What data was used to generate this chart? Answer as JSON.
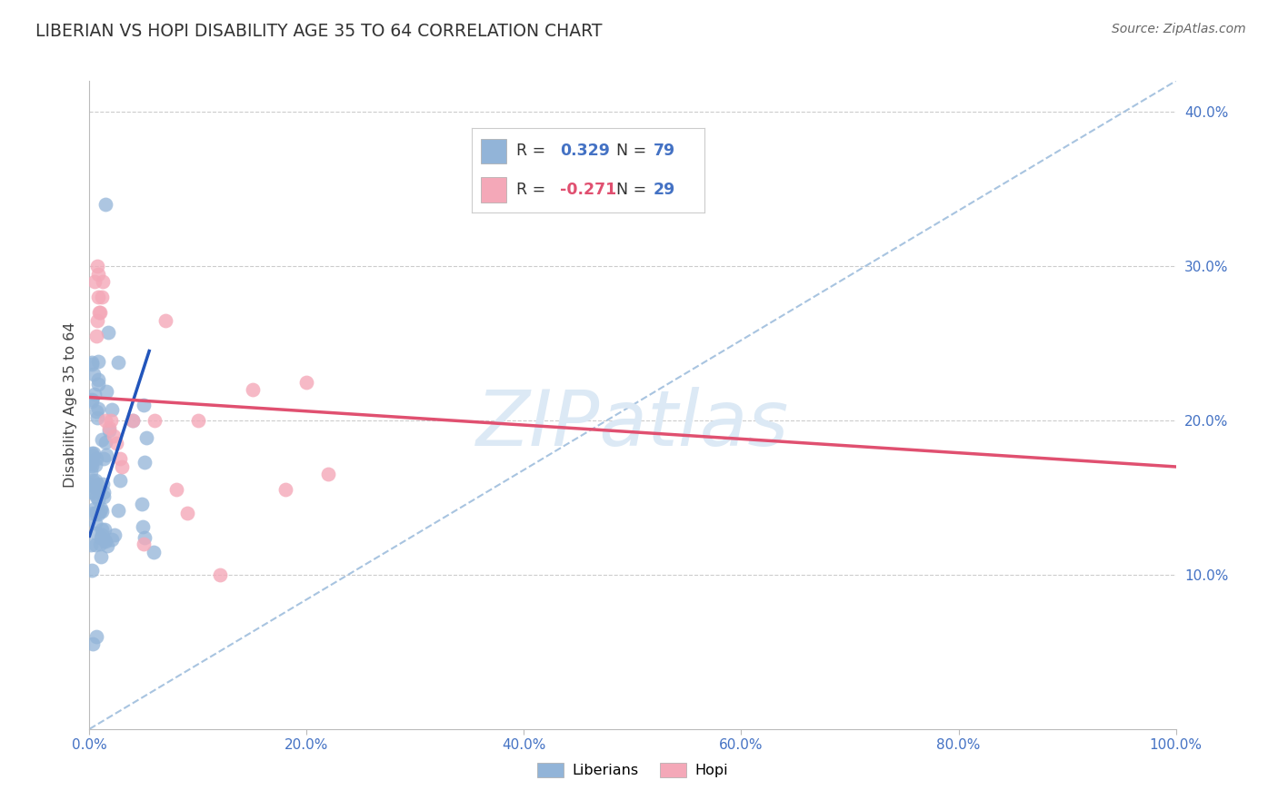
{
  "title": "LIBERIAN VS HOPI DISABILITY AGE 35 TO 64 CORRELATION CHART",
  "source": "Source: ZipAtlas.com",
  "xlim": [
    0.0,
    1.0
  ],
  "ylim": [
    0.0,
    0.42
  ],
  "xlabel_ticks": [
    "0.0%",
    "20.0%",
    "40.0%",
    "60.0%",
    "80.0%",
    "100.0%"
  ],
  "xlabel_vals": [
    0.0,
    0.2,
    0.4,
    0.6,
    0.8,
    1.0
  ],
  "ylabel_ticks": [
    "10.0%",
    "20.0%",
    "30.0%",
    "40.0%"
  ],
  "ylabel_vals": [
    0.1,
    0.2,
    0.3,
    0.4
  ],
  "liberian_R": 0.329,
  "liberian_N": 79,
  "hopi_R": -0.271,
  "hopi_N": 29,
  "liberian_color": "#92B4D8",
  "hopi_color": "#F4A8B8",
  "liberian_line_color": "#2255BB",
  "hopi_line_color": "#E05070",
  "diagonal_color": "#A8C4E0",
  "grid_color": "#CCCCCC",
  "tick_color": "#4472C4",
  "ylabel_label": "Disability Age 35 to 64",
  "watermark_text": "ZIPatlas",
  "watermark_color": "#DCE9F5",
  "legend_R1_label": "R =",
  "legend_R1_val": " 0.329",
  "legend_N1_label": "  N =",
  "legend_N1_val": " 79",
  "legend_R2_label": "R =",
  "legend_R2_val": "-0.271",
  "legend_N2_label": "  N =",
  "legend_N2_val": " 29",
  "hopi_line_x0": 0.0,
  "hopi_line_y0": 0.215,
  "hopi_line_x1": 1.0,
  "hopi_line_y1": 0.17,
  "lib_line_x0": 0.0,
  "lib_line_y0": 0.125,
  "lib_line_x1": 0.055,
  "lib_line_y1": 0.245
}
